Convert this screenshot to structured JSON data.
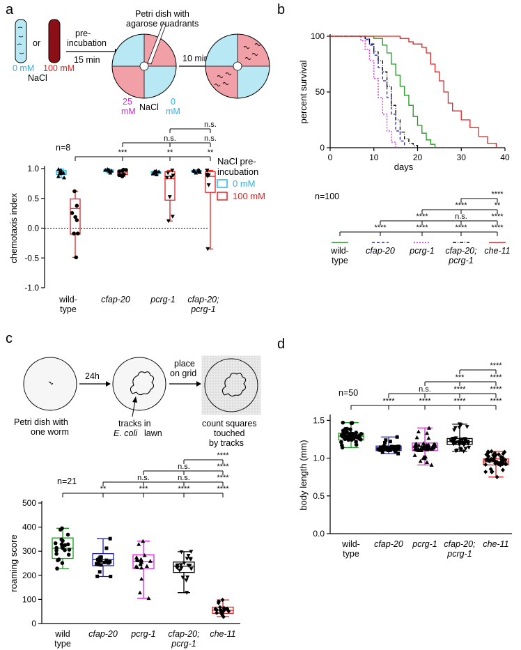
{
  "panels": {
    "a": {
      "letter": "a",
      "schematic": {
        "tube_or": "or",
        "tube_low": "0 mM",
        "tube_high": "100 mM",
        "tube_salt": "NaCl",
        "preinc_1": "pre-",
        "preinc_2": "incubation",
        "preinc_3": "15 min",
        "dish_title_1": "Petri dish with",
        "dish_title_2": "agarose quadrants",
        "q25_1": "25",
        "q25_2": "mM",
        "q0_1": "0",
        "q0_2": "mM",
        "dish_salt": "NaCl",
        "step2": "10 min"
      },
      "n_label": "n=8",
      "legend_title_1": "NaCl pre-",
      "legend_title_2": "incubation",
      "legend": [
        "0 mM",
        "100 mM"
      ],
      "sig": [
        "***",
        "**",
        "**",
        "n.s.",
        "n.s.",
        "n.s."
      ],
      "ylabel": "chemotaxis index",
      "yticks": [
        "1.0",
        "0.5",
        "0.0",
        "-0.5",
        "-1.0"
      ],
      "categories": [
        [
          "wild-",
          "type"
        ],
        [
          "cfap-20",
          ""
        ],
        [
          "pcrg-1",
          ""
        ],
        [
          "cfap-20;",
          "pcrg-1"
        ]
      ]
    },
    "b": {
      "letter": "b",
      "ylabel": "percent survival",
      "xlabel": "days",
      "yticks": [
        "100",
        "50",
        "0"
      ],
      "xticks": [
        "0",
        "10",
        "20",
        "30",
        "40"
      ],
      "n_label": "n=100",
      "sig": [
        "****",
        "****",
        "****",
        "****",
        "****",
        "n.s.",
        "****",
        "****",
        "**",
        "****"
      ],
      "legend": [
        [
          "wild-",
          "type"
        ],
        [
          "cfap-20",
          ""
        ],
        [
          "pcrg-1",
          ""
        ],
        [
          "cfap-20;",
          "pcrg-1"
        ],
        [
          "che-11",
          ""
        ]
      ]
    },
    "c": {
      "letter": "c",
      "schematic": {
        "dish1_1": "Petri dish with",
        "dish1_2": "one worm",
        "step1": "24h",
        "tracks_1": "tracks in",
        "tracks_2": "E. coli",
        "tracks_3": "lawn",
        "place_1": "place",
        "place_2": "on grid",
        "count_1": "count squares",
        "count_2": "touched",
        "count_3": "by tracks"
      },
      "n_label": "n=21",
      "ylabel": "roaming score",
      "yticks": [
        "500",
        "400",
        "300",
        "200",
        "100",
        "0"
      ],
      "sig": [
        "**",
        "***",
        "****",
        "****",
        "n.s.",
        "n.s.",
        "****",
        "n.s.",
        "****",
        "****"
      ],
      "categories": [
        [
          "wild",
          "type"
        ],
        [
          "cfap-20",
          ""
        ],
        [
          "pcrg-1",
          ""
        ],
        [
          "cfap-20;",
          "pcrg-1"
        ],
        [
          "che-11",
          ""
        ]
      ]
    },
    "d": {
      "letter": "d",
      "n_label": "n=50",
      "ylabel": "body length (mm)",
      "yticks": [
        "1.5",
        "1.0",
        "0.5",
        "0.0"
      ],
      "sig": [
        "****",
        "****",
        "****",
        "****",
        "n.s.",
        "****",
        "****",
        "***",
        "****",
        "****"
      ],
      "categories": [
        [
          "wild-",
          "type"
        ],
        [
          "cfap-20",
          ""
        ],
        [
          "pcrg-1",
          ""
        ],
        [
          "cfap-20;",
          "pcrg-1"
        ],
        [
          "che-11",
          ""
        ]
      ]
    }
  },
  "colors": {
    "wildtype": "#1a9a1a",
    "cfap20": "#1f1fbf",
    "pcrg1": "#dd1fdd",
    "double": "#000000",
    "che11": "#e02020",
    "cyan": "#29b6e6",
    "pink": "#f2a0a8",
    "lightblue": "#b7e8f4"
  },
  "chart_data": [
    {
      "type": "box",
      "panel": "a",
      "ylabel": "chemotaxis index",
      "ylim": [
        -1.0,
        1.0
      ],
      "categories": [
        "wild-type",
        "cfap-20",
        "pcrg-1",
        "cfap-20; pcrg-1"
      ],
      "series": [
        {
          "name": "0 mM",
          "boxes": [
            {
              "min": 0.85,
              "q1": 0.9,
              "median": 0.94,
              "q3": 0.97,
              "max": 0.99
            },
            {
              "min": 0.93,
              "q1": 0.95,
              "median": 0.97,
              "q3": 0.98,
              "max": 0.99
            },
            {
              "min": 0.9,
              "q1": 0.92,
              "median": 0.93,
              "q3": 0.95,
              "max": 0.96
            },
            {
              "min": 0.93,
              "q1": 0.95,
              "median": 0.96,
              "q3": 0.97,
              "max": 0.98
            }
          ]
        },
        {
          "name": "100 mM",
          "boxes": [
            {
              "min": -0.49,
              "q1": -0.1,
              "median": 0.33,
              "q3": 0.49,
              "max": 0.62
            },
            {
              "min": 0.87,
              "q1": 0.9,
              "median": 0.93,
              "q3": 0.96,
              "max": 0.98
            },
            {
              "min": 0.12,
              "q1": 0.47,
              "median": 0.83,
              "q3": 0.95,
              "max": 0.97
            },
            {
              "min": -0.35,
              "q1": 0.6,
              "median": 0.87,
              "q3": 0.95,
              "max": 0.97
            }
          ]
        }
      ]
    },
    {
      "type": "line",
      "panel": "b",
      "xlabel": "days",
      "ylabel": "percent survival",
      "xlim": [
        0,
        40
      ],
      "ylim": [
        0,
        100
      ],
      "series": [
        {
          "name": "wild-type",
          "x": [
            0,
            10,
            12,
            13,
            14,
            15,
            16,
            17,
            18,
            19,
            20,
            21,
            22,
            23,
            24
          ],
          "y": [
            100,
            98,
            92,
            85,
            75,
            65,
            55,
            47,
            38,
            28,
            20,
            13,
            7,
            3,
            0
          ]
        },
        {
          "name": "cfap-20",
          "x": [
            0,
            8,
            9,
            10,
            11,
            12,
            13,
            14,
            15,
            16,
            17
          ],
          "y": [
            100,
            97,
            92,
            83,
            72,
            60,
            45,
            30,
            15,
            6,
            0
          ]
        },
        {
          "name": "pcrg-1",
          "x": [
            0,
            7,
            8,
            9,
            10,
            11,
            12,
            13,
            14,
            15
          ],
          "y": [
            100,
            96,
            88,
            78,
            62,
            45,
            30,
            15,
            5,
            0
          ]
        },
        {
          "name": "cfap-20; pcrg-1",
          "x": [
            0,
            8,
            9,
            10,
            11,
            12,
            13,
            14,
            15,
            16,
            17,
            18,
            19,
            20
          ],
          "y": [
            100,
            98,
            93,
            86,
            78,
            68,
            55,
            38,
            25,
            14,
            8,
            4,
            2,
            0
          ]
        },
        {
          "name": "che-11",
          "x": [
            0,
            16,
            18,
            19,
            21,
            22,
            23,
            24,
            25,
            26,
            27,
            28,
            30,
            32,
            34,
            36,
            38
          ],
          "y": [
            100,
            98,
            95,
            93,
            90,
            85,
            75,
            68,
            60,
            50,
            40,
            33,
            25,
            18,
            10,
            4,
            0
          ]
        }
      ]
    },
    {
      "type": "box",
      "panel": "c",
      "ylabel": "roaming score",
      "ylim": [
        0,
        500
      ],
      "categories": [
        "wild type",
        "cfap-20",
        "pcrg-1",
        "cfap-20; pcrg-1",
        "che-11"
      ],
      "boxes": [
        {
          "min": 228,
          "q1": 270,
          "median": 312,
          "q3": 355,
          "max": 395
        },
        {
          "min": 195,
          "q1": 240,
          "median": 265,
          "q3": 290,
          "max": 352
        },
        {
          "min": 105,
          "q1": 228,
          "median": 258,
          "q3": 285,
          "max": 342
        },
        {
          "min": 128,
          "q1": 212,
          "median": 238,
          "q3": 255,
          "max": 298
        },
        {
          "min": 28,
          "q1": 42,
          "median": 55,
          "q3": 68,
          "max": 98
        }
      ]
    },
    {
      "type": "box",
      "panel": "d",
      "ylabel": "body length (mm)",
      "ylim": [
        0.0,
        1.5
      ],
      "categories": [
        "wild-type",
        "cfap-20",
        "pcrg-1",
        "cfap-20; pcrg-1",
        "che-11"
      ],
      "boxes": [
        {
          "min": 1.14,
          "q1": 1.24,
          "median": 1.29,
          "q3": 1.33,
          "max": 1.47
        },
        {
          "min": 1.06,
          "q1": 1.1,
          "median": 1.13,
          "q3": 1.16,
          "max": 1.28
        },
        {
          "min": 0.91,
          "q1": 1.1,
          "median": 1.15,
          "q3": 1.2,
          "max": 1.4
        },
        {
          "min": 1.09,
          "q1": 1.18,
          "median": 1.22,
          "q3": 1.26,
          "max": 1.45
        },
        {
          "min": 0.75,
          "q1": 0.91,
          "median": 0.95,
          "q3": 0.99,
          "max": 1.09
        }
      ]
    }
  ]
}
